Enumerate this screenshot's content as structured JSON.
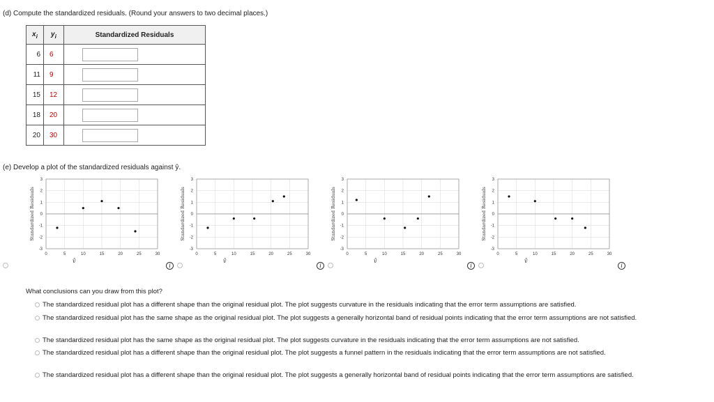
{
  "part_d": {
    "prompt": "(d)  Compute the standardized residuals. (Round your answers to two decimal places.)",
    "headers": {
      "x": "x",
      "x_sub": "i",
      "y": "y",
      "y_sub": "i",
      "resid": "Standardized Residuals"
    },
    "rows": [
      {
        "x": "6",
        "y": "6",
        "value": ""
      },
      {
        "x": "11",
        "y": "9",
        "value": ""
      },
      {
        "x": "15",
        "y": "12",
        "value": ""
      },
      {
        "x": "18",
        "y": "20",
        "value": ""
      },
      {
        "x": "20",
        "y": "30",
        "value": ""
      }
    ]
  },
  "part_e": {
    "prompt": "(e)  Develop a plot of the standardized residuals against ŷ.",
    "axis": {
      "ylabel": "Standardized Residuals",
      "xlabel": "ŷ",
      "xticks": [
        "0",
        "5",
        "10",
        "15",
        "20",
        "25",
        "30"
      ],
      "yticks": [
        "-3",
        "-2",
        "-1",
        "0",
        "1",
        "2",
        "3"
      ],
      "xlim": [
        0,
        30
      ],
      "ylim": [
        -3,
        3
      ]
    },
    "info_glyph": "i",
    "plots": [
      {
        "points": [
          [
            3,
            -1.2
          ],
          [
            10,
            0.5
          ],
          [
            15,
            1.1
          ],
          [
            19.5,
            0.5
          ],
          [
            24,
            -1.5
          ]
        ]
      },
      {
        "points": [
          [
            3,
            -1.2
          ],
          [
            10,
            -0.4
          ],
          [
            15.5,
            -0.4
          ],
          [
            20.5,
            1.1
          ],
          [
            23.5,
            1.5
          ]
        ]
      },
      {
        "points": [
          [
            2.5,
            1.2
          ],
          [
            10,
            -0.4
          ],
          [
            15.5,
            -1.2
          ],
          [
            19,
            -0.4
          ],
          [
            22,
            1.5
          ]
        ]
      },
      {
        "points": [
          [
            3,
            1.5
          ],
          [
            10,
            1.1
          ],
          [
            15.5,
            -0.4
          ],
          [
            20,
            -0.4
          ],
          [
            23.5,
            -1.2
          ]
        ]
      }
    ]
  },
  "conclusions": {
    "question": "What conclusions can you draw from this plot?",
    "options": [
      "The standardized residual plot has a different shape than the original residual plot. The plot suggests curvature in the residuals indicating that the error term assumptions are satisfied.",
      "The standardized residual plot has the same shape as the original residual plot. The plot suggests a generally horizontal band of residual points indicating that the error term assumptions are not satisfied.",
      "The standardized residual plot has the same shape as the original residual plot. The plot suggests curvature in the residuals indicating that the error term assumptions are not satisfied.",
      "The standardized residual plot has a different shape than the original residual plot. The plot suggests a funnel pattern in the residuals indicating that the error term assumptions are not satisfied.",
      "The standardized residual plot has a different shape than the original residual plot. The plot suggests a generally horizontal band of residual points indicating that the error term assumptions are satisfied."
    ]
  }
}
